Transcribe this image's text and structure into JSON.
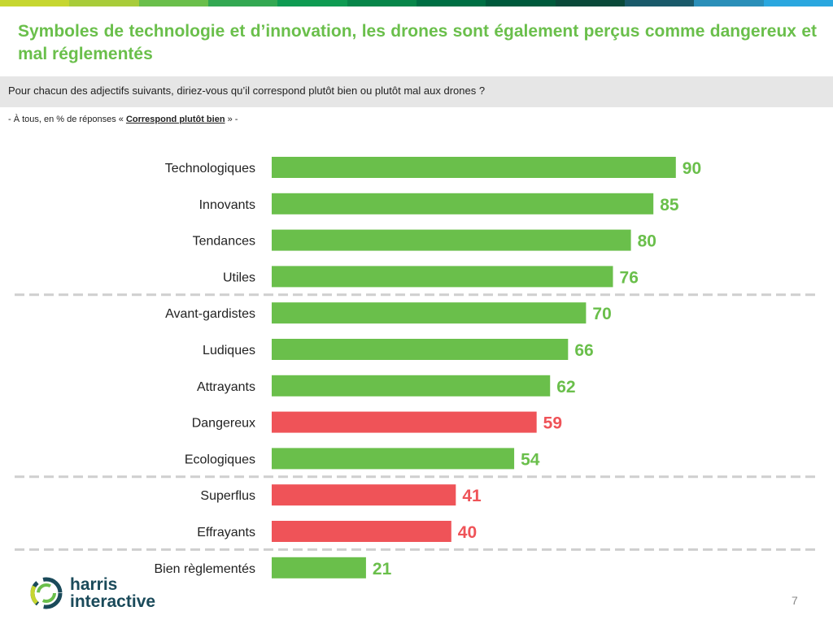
{
  "header": {
    "title": "Symboles de technologie et d’innovation, les drones sont également perçus comme dangereux et mal réglementés",
    "question": "Pour chacun des adjectifs suivants, diriez-vous qu’il correspond plutôt bien ou plutôt mal aux drones ?",
    "base_prefix": "- À tous, en % de réponses «",
    "base_emphasis": "Correspond plutôt bien",
    "base_suffix": "» -"
  },
  "colors": {
    "title": "#6abf4b",
    "positive": "#6abf4b",
    "negative": "#ef5358",
    "stripes": [
      "#c6d630",
      "#a8cc3a",
      "#6abf4b",
      "#33a852",
      "#0e9b52",
      "#08864a",
      "#006f44",
      "#005a3c",
      "#0a4a3a",
      "#1a5a6a",
      "#2b8fb9",
      "#2aa7df"
    ]
  },
  "chart_data": {
    "type": "bar",
    "orientation": "horizontal",
    "categories": [
      "Technologiques",
      "Innovants",
      "Tendances",
      "Utiles",
      "Avant-gardistes",
      "Ludiques",
      "Attrayants",
      "Dangereux",
      "Ecologiques",
      "Superflus",
      "Effrayants",
      "Bien règlementés"
    ],
    "values": [
      90,
      85,
      80,
      76,
      70,
      66,
      62,
      59,
      54,
      41,
      40,
      21
    ],
    "bar_colors": [
      "positive",
      "positive",
      "positive",
      "positive",
      "positive",
      "positive",
      "positive",
      "negative",
      "positive",
      "negative",
      "negative",
      "positive"
    ],
    "xlim": [
      0,
      100
    ],
    "data_labels": true,
    "group_separators_after": [
      3,
      8,
      10
    ]
  },
  "footer": {
    "logo_line1": "harris",
    "logo_line2": "interactive",
    "page_number": "7"
  }
}
